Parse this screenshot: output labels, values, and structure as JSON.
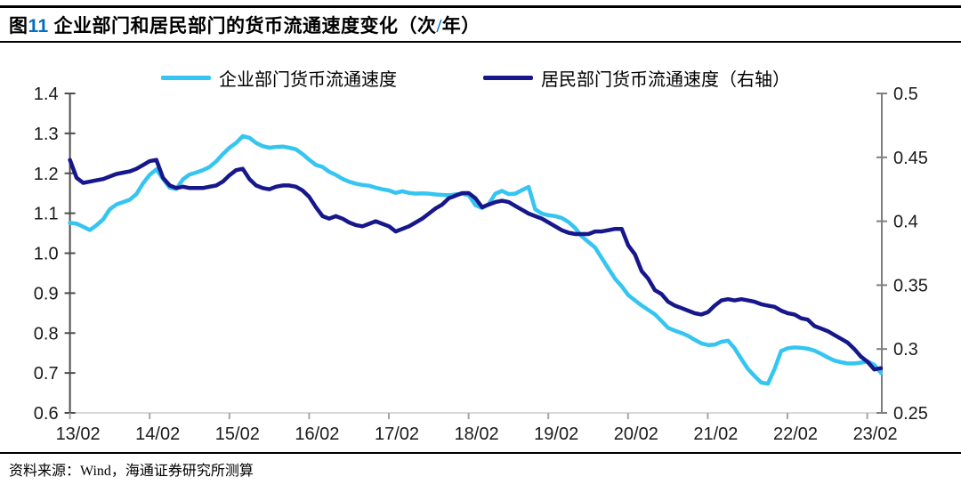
{
  "header": {
    "title_prefix": "图",
    "figure_number": "11",
    "title_main": " 企业部门和居民部门的货币流通速度变化（次",
    "title_slash": "/",
    "title_suffix": "年）",
    "title_full": "图11 企业部门和居民部门的货币流通速度变化（次/年）"
  },
  "footer": {
    "source": "资料来源：Wind，海通证券研究所测算"
  },
  "colors": {
    "corporate_line": "#35c5f1",
    "household_line": "#17178c",
    "figure_number_blue": "#0070c0",
    "left_axis_line": "#4d4d4d",
    "right_axis_line": "#7f7f7f",
    "x_axis_line": "#d9d9d9",
    "x_tick": "#a6a6a6",
    "tick_label": "#1a1a1a"
  },
  "chart_data": {
    "type": "line",
    "title": "图11 企业部门和居民部门的货币流通速度变化（次/年）",
    "x_note": "monthly data from 2013-02 to 2023-04, x ticks every February",
    "x_tick_labels": [
      "13/02",
      "14/02",
      "15/02",
      "16/02",
      "17/02",
      "18/02",
      "19/02",
      "20/02",
      "21/02",
      "22/02",
      "23/02"
    ],
    "left_axis": {
      "min": 0.6,
      "max": 1.4,
      "ticks": [
        "1.4",
        "1.3",
        "1.2",
        "1.1",
        "1.0",
        "0.9",
        "0.8",
        "0.7",
        "0.6"
      ]
    },
    "right_axis": {
      "min": 0.25,
      "max": 0.5,
      "ticks": [
        "0.5",
        "0.45",
        "0.4",
        "0.35",
        "0.3",
        "0.25"
      ]
    },
    "grid": false,
    "legend_position": "top",
    "series": [
      {
        "name": "企业部门货币流通速度",
        "axis": "left",
        "color": "#35c5f1",
        "values": [
          1.076,
          1.074,
          1.066,
          1.058,
          1.07,
          1.085,
          1.11,
          1.122,
          1.128,
          1.134,
          1.148,
          1.175,
          1.196,
          1.21,
          1.186,
          1.164,
          1.161,
          1.185,
          1.197,
          1.202,
          1.208,
          1.216,
          1.23,
          1.248,
          1.264,
          1.276,
          1.293,
          1.289,
          1.276,
          1.268,
          1.264,
          1.266,
          1.267,
          1.264,
          1.26,
          1.248,
          1.234,
          1.221,
          1.216,
          1.204,
          1.196,
          1.186,
          1.179,
          1.174,
          1.171,
          1.169,
          1.164,
          1.16,
          1.157,
          1.151,
          1.155,
          1.151,
          1.149,
          1.15,
          1.149,
          1.147,
          1.146,
          1.145,
          1.147,
          1.149,
          1.145,
          1.12,
          1.113,
          1.123,
          1.149,
          1.156,
          1.148,
          1.149,
          1.158,
          1.166,
          1.11,
          1.099,
          1.095,
          1.093,
          1.088,
          1.078,
          1.063,
          1.042,
          1.028,
          1.014,
          0.988,
          0.962,
          0.936,
          0.917,
          0.895,
          0.882,
          0.869,
          0.858,
          0.847,
          0.83,
          0.813,
          0.806,
          0.8,
          0.793,
          0.783,
          0.774,
          0.77,
          0.771,
          0.778,
          0.781,
          0.762,
          0.735,
          0.71,
          0.692,
          0.676,
          0.673,
          0.71,
          0.755,
          0.762,
          0.764,
          0.763,
          0.761,
          0.756,
          0.748,
          0.739,
          0.731,
          0.727,
          0.724,
          0.724,
          0.726,
          0.729,
          0.72,
          0.7
        ]
      },
      {
        "name": "居民部门货币流通速度（右轴）",
        "axis": "right",
        "color": "#17178c",
        "values": [
          0.448,
          0.434,
          0.43,
          0.431,
          0.432,
          0.433,
          0.435,
          0.437,
          0.438,
          0.439,
          0.441,
          0.444,
          0.447,
          0.448,
          0.434,
          0.428,
          0.426,
          0.427,
          0.426,
          0.426,
          0.426,
          0.427,
          0.428,
          0.431,
          0.436,
          0.44,
          0.441,
          0.433,
          0.428,
          0.426,
          0.425,
          0.427,
          0.428,
          0.428,
          0.427,
          0.424,
          0.419,
          0.411,
          0.404,
          0.402,
          0.404,
          0.402,
          0.399,
          0.397,
          0.396,
          0.398,
          0.4,
          0.398,
          0.396,
          0.392,
          0.394,
          0.396,
          0.399,
          0.402,
          0.406,
          0.41,
          0.413,
          0.418,
          0.42,
          0.422,
          0.422,
          0.418,
          0.411,
          0.413,
          0.415,
          0.416,
          0.415,
          0.412,
          0.409,
          0.406,
          0.404,
          0.402,
          0.399,
          0.396,
          0.393,
          0.391,
          0.39,
          0.39,
          0.39,
          0.392,
          0.392,
          0.393,
          0.394,
          0.394,
          0.381,
          0.374,
          0.361,
          0.355,
          0.346,
          0.343,
          0.337,
          0.334,
          0.332,
          0.33,
          0.328,
          0.327,
          0.329,
          0.334,
          0.338,
          0.339,
          0.338,
          0.339,
          0.338,
          0.337,
          0.335,
          0.334,
          0.333,
          0.33,
          0.328,
          0.327,
          0.324,
          0.323,
          0.318,
          0.316,
          0.314,
          0.311,
          0.308,
          0.305,
          0.3,
          0.294,
          0.29,
          0.284,
          0.285
        ]
      }
    ]
  }
}
